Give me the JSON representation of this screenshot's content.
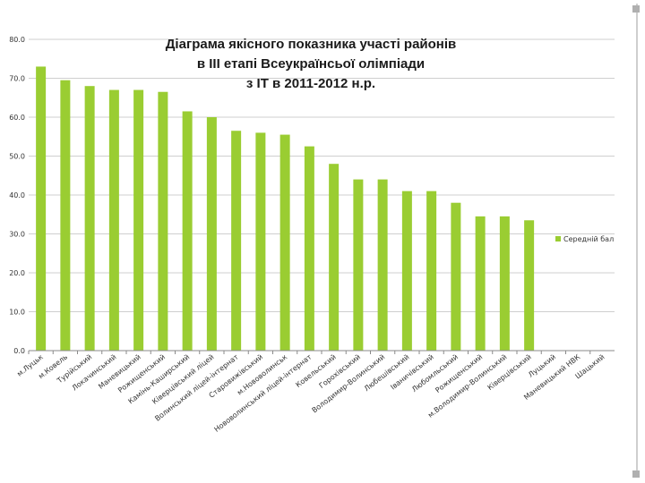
{
  "chart_data": {
    "type": "bar",
    "title_lines": [
      "Діаграма якісного показника участі районів",
      "в ІІІ етапі Всеукраїнсьої олімпіади",
      "з ІТ в 2011-2012 н.р."
    ],
    "categories": [
      "м.Луцьк",
      "м.Ковель",
      "Турійський",
      "Локачинський",
      "Маневицький",
      "Рожищенський",
      "Камінь-Каширський",
      "Ківерцівський ліцей",
      "Волинський ліцей-інтернат",
      "Старовижівський",
      "м.Нововолинськ",
      "Нововолинський ліцей-інтернат",
      "Ковельський",
      "Горохівський",
      "Володимир-Волинський",
      "Любешівський",
      "Іваничівський",
      "Любомльський",
      "Рожищенський",
      "м.Володимир-Волинський",
      "Ківерцівський",
      "Луцький",
      "Маневицький НВК",
      "Шацький"
    ],
    "series": [
      {
        "name": "Середній бал",
        "values": [
          73,
          69.5,
          68,
          67,
          67,
          66.5,
          61.5,
          60,
          56.5,
          56,
          55.5,
          52.5,
          48,
          44,
          44,
          41,
          41,
          38,
          34.5,
          34.5,
          33.5,
          0,
          0,
          0
        ]
      }
    ],
    "ylim": [
      0,
      80
    ],
    "yticks": [
      "0.0",
      "10.0",
      "20.0",
      "30.0",
      "40.0",
      "50.0",
      "60.0",
      "70.0",
      "80.0"
    ],
    "grid": true,
    "legend_position": "right",
    "colors": {
      "bar": "#9ACD32",
      "grid": "#cfcfcf",
      "axis": "#8a8a8a"
    }
  }
}
